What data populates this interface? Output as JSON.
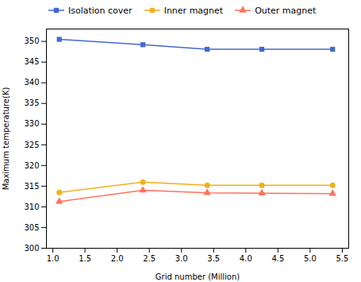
{
  "chart_data": {
    "type": "line",
    "x": [
      1.1,
      2.4,
      3.4,
      4.25,
      5.35
    ],
    "series": [
      {
        "name": "Isolation cover",
        "marker": "square",
        "values": [
          350.5,
          349.2,
          348.1,
          348.1,
          348.1
        ]
      },
      {
        "name": "Inner magnet",
        "marker": "circle",
        "values": [
          313.5,
          316.0,
          315.2,
          315.2,
          315.2
        ]
      },
      {
        "name": "Outer magnet",
        "marker": "triangle",
        "values": [
          311.3,
          314.0,
          313.4,
          313.3,
          313.2
        ]
      }
    ],
    "xlabel": "Grid number (Million)",
    "ylabel": "Maximum temperature(K)",
    "xlim": [
      0.9,
      5.6
    ],
    "ylim": [
      300,
      353
    ],
    "xticks": [
      {
        "value": 1.0,
        "label": "1.0"
      },
      1.5,
      {
        "value": 2.0,
        "label": "2.0"
      },
      2.5,
      {
        "value": 3.0,
        "label": "3.0"
      },
      3.5,
      {
        "value": 4.0,
        "label": "4.0"
      },
      4.5,
      {
        "value": 5.0,
        "label": "5.0"
      },
      5.5
    ],
    "yticks": [
      300,
      305,
      310,
      315,
      320,
      325,
      330,
      335,
      340,
      345,
      350
    ],
    "grid": false,
    "legend": "upper left"
  }
}
